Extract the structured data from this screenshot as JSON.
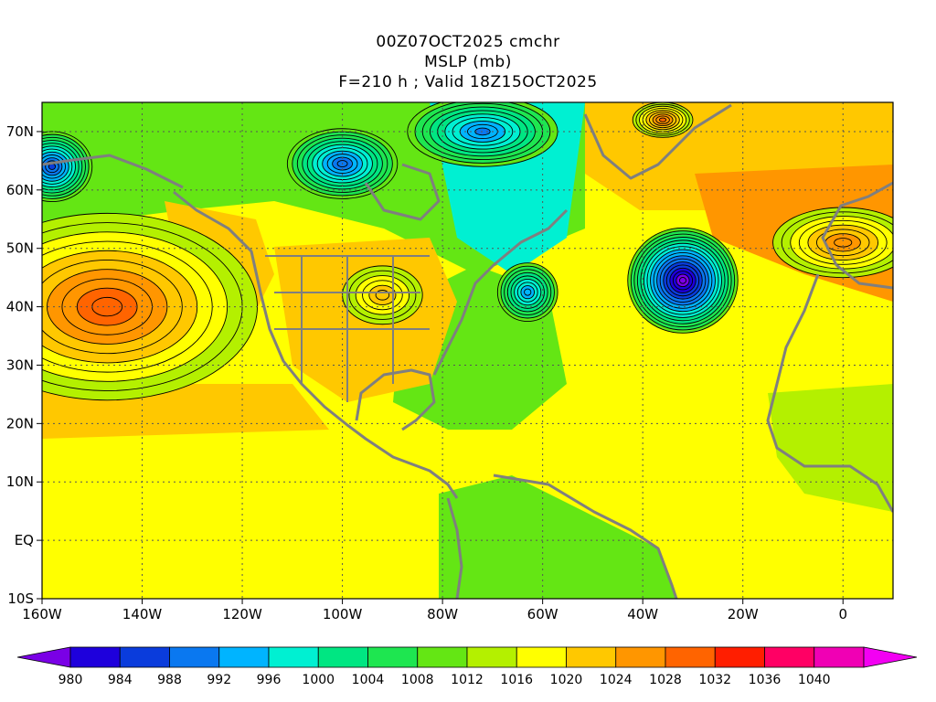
{
  "title": {
    "line1": "00Z07OCT2025 cmchr",
    "line2": "MSLP (mb)",
    "line3": "F=210 h ; Valid 18Z15OCT2025"
  },
  "map": {
    "projection": "lat-lon",
    "lon_range": [
      -160,
      10
    ],
    "lat_range": [
      -10,
      75
    ],
    "grid": true,
    "lon_ticks": [
      {
        "value": -160,
        "label": "160W"
      },
      {
        "value": -140,
        "label": "140W"
      },
      {
        "value": -120,
        "label": "120W"
      },
      {
        "value": -100,
        "label": "100W"
      },
      {
        "value": -80,
        "label": "80W"
      },
      {
        "value": -60,
        "label": "60W"
      },
      {
        "value": -40,
        "label": "40W"
      },
      {
        "value": -20,
        "label": "20W"
      },
      {
        "value": 0,
        "label": "0"
      }
    ],
    "lat_ticks": [
      {
        "value": 70,
        "label": "70N"
      },
      {
        "value": 60,
        "label": "60N"
      },
      {
        "value": 50,
        "label": "50N"
      },
      {
        "value": 40,
        "label": "40N"
      },
      {
        "value": 30,
        "label": "30N"
      },
      {
        "value": 20,
        "label": "20N"
      },
      {
        "value": 10,
        "label": "10N"
      },
      {
        "value": 0,
        "label": "EQ"
      },
      {
        "value": -10,
        "label": "10S"
      }
    ],
    "pressure_centers": [
      {
        "name": "pacific-high",
        "lon": -147,
        "lat": 40,
        "value": 1030,
        "rx": 30,
        "ry": 16,
        "kind": "high"
      },
      {
        "name": "atlantic-low",
        "lon": -32,
        "lat": 44.5,
        "value": 976,
        "rx": 11,
        "ry": 9,
        "kind": "low"
      },
      {
        "name": "nova-scotia-low",
        "lon": -63,
        "lat": 42.5,
        "value": 992,
        "rx": 6,
        "ry": 5,
        "kind": "low"
      },
      {
        "name": "hudson-low",
        "lon": -100,
        "lat": 64.5,
        "value": 988,
        "rx": 11,
        "ry": 6,
        "kind": "low"
      },
      {
        "name": "alaska-low",
        "lon": -158,
        "lat": 64,
        "value": 986,
        "rx": 8,
        "ry": 6,
        "kind": "low"
      },
      {
        "name": "baffin-low",
        "lon": -72,
        "lat": 70,
        "value": 990,
        "rx": 15,
        "ry": 6,
        "kind": "low"
      },
      {
        "name": "greenland-high",
        "lon": -36,
        "lat": 72,
        "value": 1028,
        "rx": 6,
        "ry": 3,
        "kind": "high"
      },
      {
        "name": "europe-high",
        "lon": 0,
        "lat": 51,
        "value": 1026,
        "rx": 14,
        "ry": 6,
        "kind": "high"
      },
      {
        "name": "us-high",
        "lon": -92,
        "lat": 42,
        "value": 1022,
        "rx": 8,
        "ry": 5,
        "kind": "high"
      }
    ]
  },
  "colorbar": {
    "levels": [
      980,
      984,
      988,
      992,
      996,
      1000,
      1004,
      1008,
      1012,
      1016,
      1020,
      1024,
      1028,
      1032,
      1036,
      1040
    ],
    "labels": [
      "980",
      "984",
      "988",
      "992",
      "996",
      "1000",
      "1004",
      "1008",
      "1012",
      "1016",
      "1020",
      "1024",
      "1028",
      "1032",
      "1036",
      "1040"
    ],
    "under_color": "#7a00e6",
    "over_color": "#f300f3",
    "colors": [
      "#1e00dc",
      "#0a3cdc",
      "#0a78f0",
      "#00b4ff",
      "#00f0d2",
      "#00e682",
      "#1ee650",
      "#64e614",
      "#b4f000",
      "#ffff00",
      "#ffc800",
      "#ff9600",
      "#ff6400",
      "#ff1e00",
      "#ff0064",
      "#f000b4"
    ]
  }
}
